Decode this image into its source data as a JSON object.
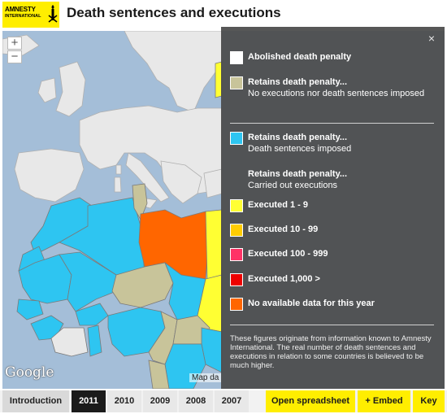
{
  "header": {
    "logo_line1": "AMNESTY",
    "logo_line2": "INTERNATIONAL",
    "title": "Death sentences and executions"
  },
  "map": {
    "zoom_in": "+",
    "zoom_out": "−",
    "google": "Google",
    "map_data": "Map da"
  },
  "legend": {
    "close": "×",
    "items": [
      {
        "label": "Abolished death penalty",
        "sub": "",
        "color": "#ffffff"
      },
      {
        "label": "Retains death penalty...",
        "sub": "No executions nor death sentences imposed",
        "color": "#c8c49a"
      },
      {
        "label": "Retains death penalty...",
        "sub": "Death sentences imposed",
        "color": "#2ec5f1"
      },
      {
        "label": "Retains death penalty...",
        "sub": "Carried out executions",
        "color": ""
      },
      {
        "label": "Executed 1 - 9",
        "sub": "",
        "color": "#ffff33"
      },
      {
        "label": "Executed 10 - 99",
        "sub": "",
        "color": "#ffcc00"
      },
      {
        "label": "Executed 100 - 999",
        "sub": "",
        "color": "#ff3366"
      },
      {
        "label": "Executed 1,000 >",
        "sub": "",
        "color": "#ee0000"
      },
      {
        "label": "No available data for this year",
        "sub": "",
        "color": "#ff6600"
      }
    ],
    "note": "These figures originate from information known to Amnesty International. The real number of death sentences and executions in relation to some countries is believed to be much higher."
  },
  "footer": {
    "introduction": "Introduction",
    "years": [
      "2011",
      "2010",
      "2009",
      "2008",
      "2007"
    ],
    "active_year": "2011",
    "open_spreadsheet": "Open spreadsheet",
    "embed": "+ Embed",
    "key": "Key"
  },
  "colors": {
    "brand_yellow": "#ffee00",
    "map_sea": "#a4bed8",
    "land_grey": "#e8e8e8",
    "panel_bg": "#4a4a4a"
  }
}
